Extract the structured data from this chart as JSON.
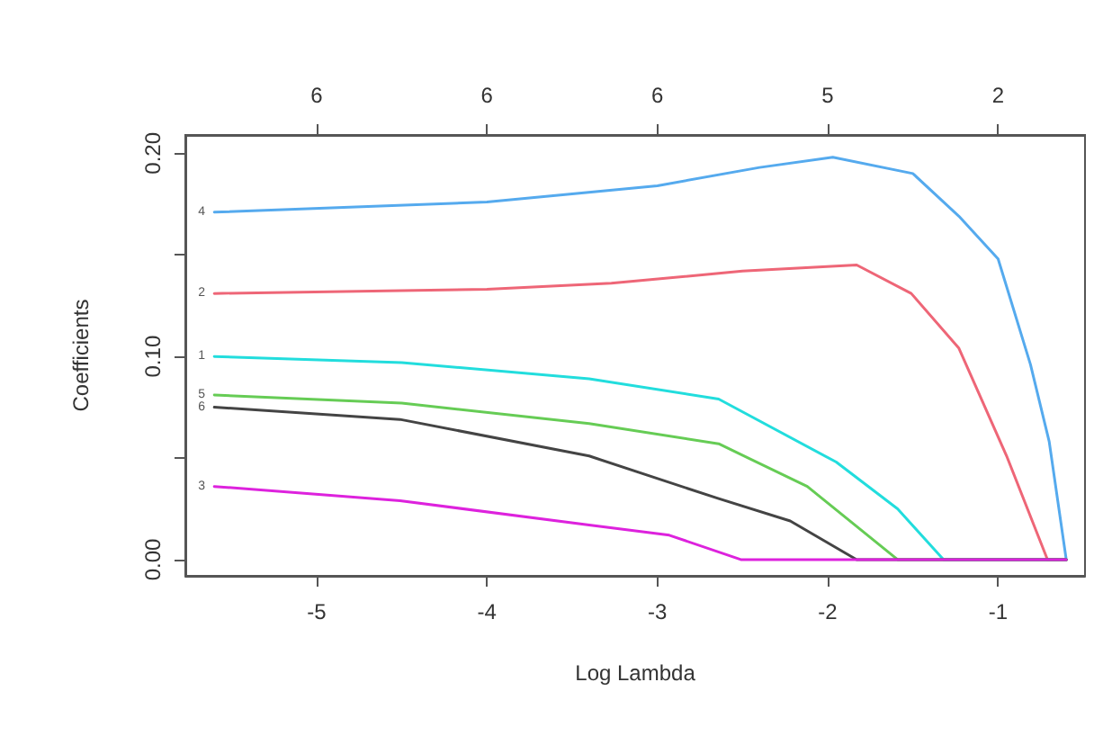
{
  "chart_data": {
    "type": "line",
    "xlabel": "Log Lambda",
    "ylabel": "Coefficients",
    "xlim": [
      -5.77,
      -0.49
    ],
    "xticks": [
      -5,
      -4,
      -3,
      -2,
      -1
    ],
    "ylim": [
      -0.008,
      0.209
    ],
    "yticks": [
      {
        "value": 0,
        "label": "0.00"
      },
      {
        "value": 0.05,
        "label": null
      },
      {
        "value": 0.1,
        "label": "0.10"
      },
      {
        "value": 0.15,
        "label": null
      },
      {
        "value": 0.2,
        "label": "0.20"
      }
    ],
    "grid": false,
    "marker": "none",
    "line_style": "solid",
    "series": [
      {
        "color": "#55aaee",
        "x": [
          -5.6,
          -4,
          -3,
          -2.4,
          -1.97,
          -1.5,
          -1.23,
          -1,
          -0.81,
          -0.7,
          -0.6
        ],
        "values": [
          0.171,
          0.176,
          0.184,
          0.193,
          0.198,
          0.19,
          0.169,
          0.148,
          0.096,
          0.058,
          0
        ]
      },
      {
        "color": "#ee6677",
        "x": [
          -5.6,
          -4,
          -3.27,
          -2.5,
          -1.83,
          -1.51,
          -1.23,
          -0.95,
          -0.71,
          -0.6
        ],
        "values": [
          0.131,
          0.133,
          0.136,
          0.142,
          0.145,
          0.131,
          0.104,
          0.051,
          0,
          0
        ]
      },
      {
        "color": "#22dddd",
        "x": [
          -5.6,
          -4.5,
          -3.4,
          -2.64,
          -1.95,
          -1.59,
          -1.32,
          -0.6
        ],
        "values": [
          0.1,
          0.097,
          0.089,
          0.079,
          0.048,
          0.025,
          0,
          0
        ]
      },
      {
        "color": "#66cc55",
        "x": [
          -5.6,
          -4.5,
          -3.4,
          -2.64,
          -2.12,
          -1.59,
          -0.6
        ],
        "values": [
          0.081,
          0.077,
          0.067,
          0.057,
          0.036,
          0,
          0
        ]
      },
      {
        "color": "#444444",
        "x": [
          -5.6,
          -4.51,
          -3.4,
          -2.64,
          -2.22,
          -1.83,
          -0.6
        ],
        "values": [
          0.075,
          0.069,
          0.051,
          0.03,
          0.019,
          0,
          0
        ]
      },
      {
        "color": "#dd22dd",
        "x": [
          -5.6,
          -4.51,
          -3.4,
          -2.93,
          -2.51,
          -0.6
        ],
        "values": [
          0.036,
          0.029,
          0.017,
          0.012,
          0,
          0
        ]
      }
    ],
    "annotations": [
      "4",
      "2",
      "1",
      "5",
      "6",
      "3",
      "6",
      "6",
      "6",
      "5",
      "2"
    ]
  }
}
